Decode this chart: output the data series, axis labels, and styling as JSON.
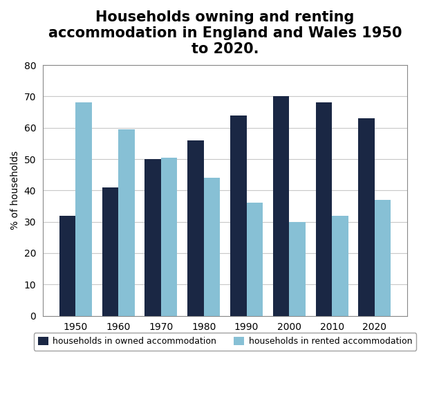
{
  "title": "Households owning and renting\naccommodation in England and Wales 1950\nto 2020.",
  "ylabel": "% of households",
  "years": [
    1950,
    1960,
    1970,
    1980,
    1990,
    2000,
    2010,
    2020
  ],
  "owned": [
    32,
    41,
    50,
    56,
    64,
    70,
    68,
    63
  ],
  "rented": [
    68,
    59.5,
    50.5,
    44,
    36,
    30,
    32,
    37
  ],
  "color_owned": "#1a2744",
  "color_rented": "#87c0d5",
  "ylim": [
    0,
    80
  ],
  "yticks": [
    0,
    10,
    20,
    30,
    40,
    50,
    60,
    70,
    80
  ],
  "bar_width": 0.38,
  "legend_owned": "households in owned accommodation",
  "legend_rented": "households in rented accommodation",
  "background_color": "#ffffff",
  "plot_area_color": "#ffffff",
  "grid_color": "#c8c8c8",
  "title_fontsize": 15,
  "axis_fontsize": 10,
  "legend_fontsize": 9,
  "tick_fontsize": 10
}
